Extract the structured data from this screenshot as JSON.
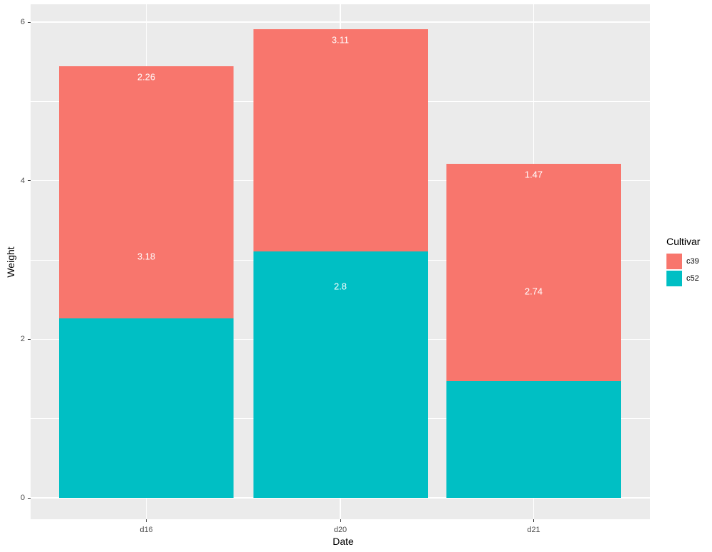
{
  "chart_data": {
    "type": "bar",
    "stacked": true,
    "title": "",
    "xlabel": "Date",
    "ylabel": "Weight",
    "categories": [
      "d16",
      "d20",
      "d21"
    ],
    "series": [
      {
        "name": "c52",
        "color": "#00BFC4",
        "values": [
          2.26,
          3.11,
          1.47
        ]
      },
      {
        "name": "c39",
        "color": "#F8766D",
        "values": [
          3.18,
          2.8,
          2.74
        ]
      }
    ],
    "bar_value_labels": [
      {
        "category_index": 0,
        "text": "3.18",
        "y": 3.18
      },
      {
        "category_index": 0,
        "text": "2.26",
        "y": 5.44
      },
      {
        "category_index": 1,
        "text": "2.8",
        "y": 2.8
      },
      {
        "category_index": 1,
        "text": "3.11",
        "y": 5.91
      },
      {
        "category_index": 2,
        "text": "2.74",
        "y": 2.74
      },
      {
        "category_index": 2,
        "text": "1.47",
        "y": 4.21
      }
    ],
    "ylim": [
      0,
      6
    ],
    "yticks_major": [
      0,
      2,
      4,
      6
    ],
    "yticks_minor": [
      1,
      3,
      5
    ],
    "legend": {
      "title": "Cultivar",
      "position": "right",
      "entries": [
        {
          "label": "c39",
          "color": "#F8766D"
        },
        {
          "label": "c52",
          "color": "#00BFC4"
        }
      ]
    },
    "colors": {
      "panel_background": "#EBEBEB",
      "grid": "#FFFFFF",
      "axis_text": "#4D4D4D",
      "tick_mark": "#333333",
      "bar_label_text": "#FFFFFF"
    },
    "layout_hints": {
      "grid": "on",
      "legend_position": "right"
    }
  }
}
